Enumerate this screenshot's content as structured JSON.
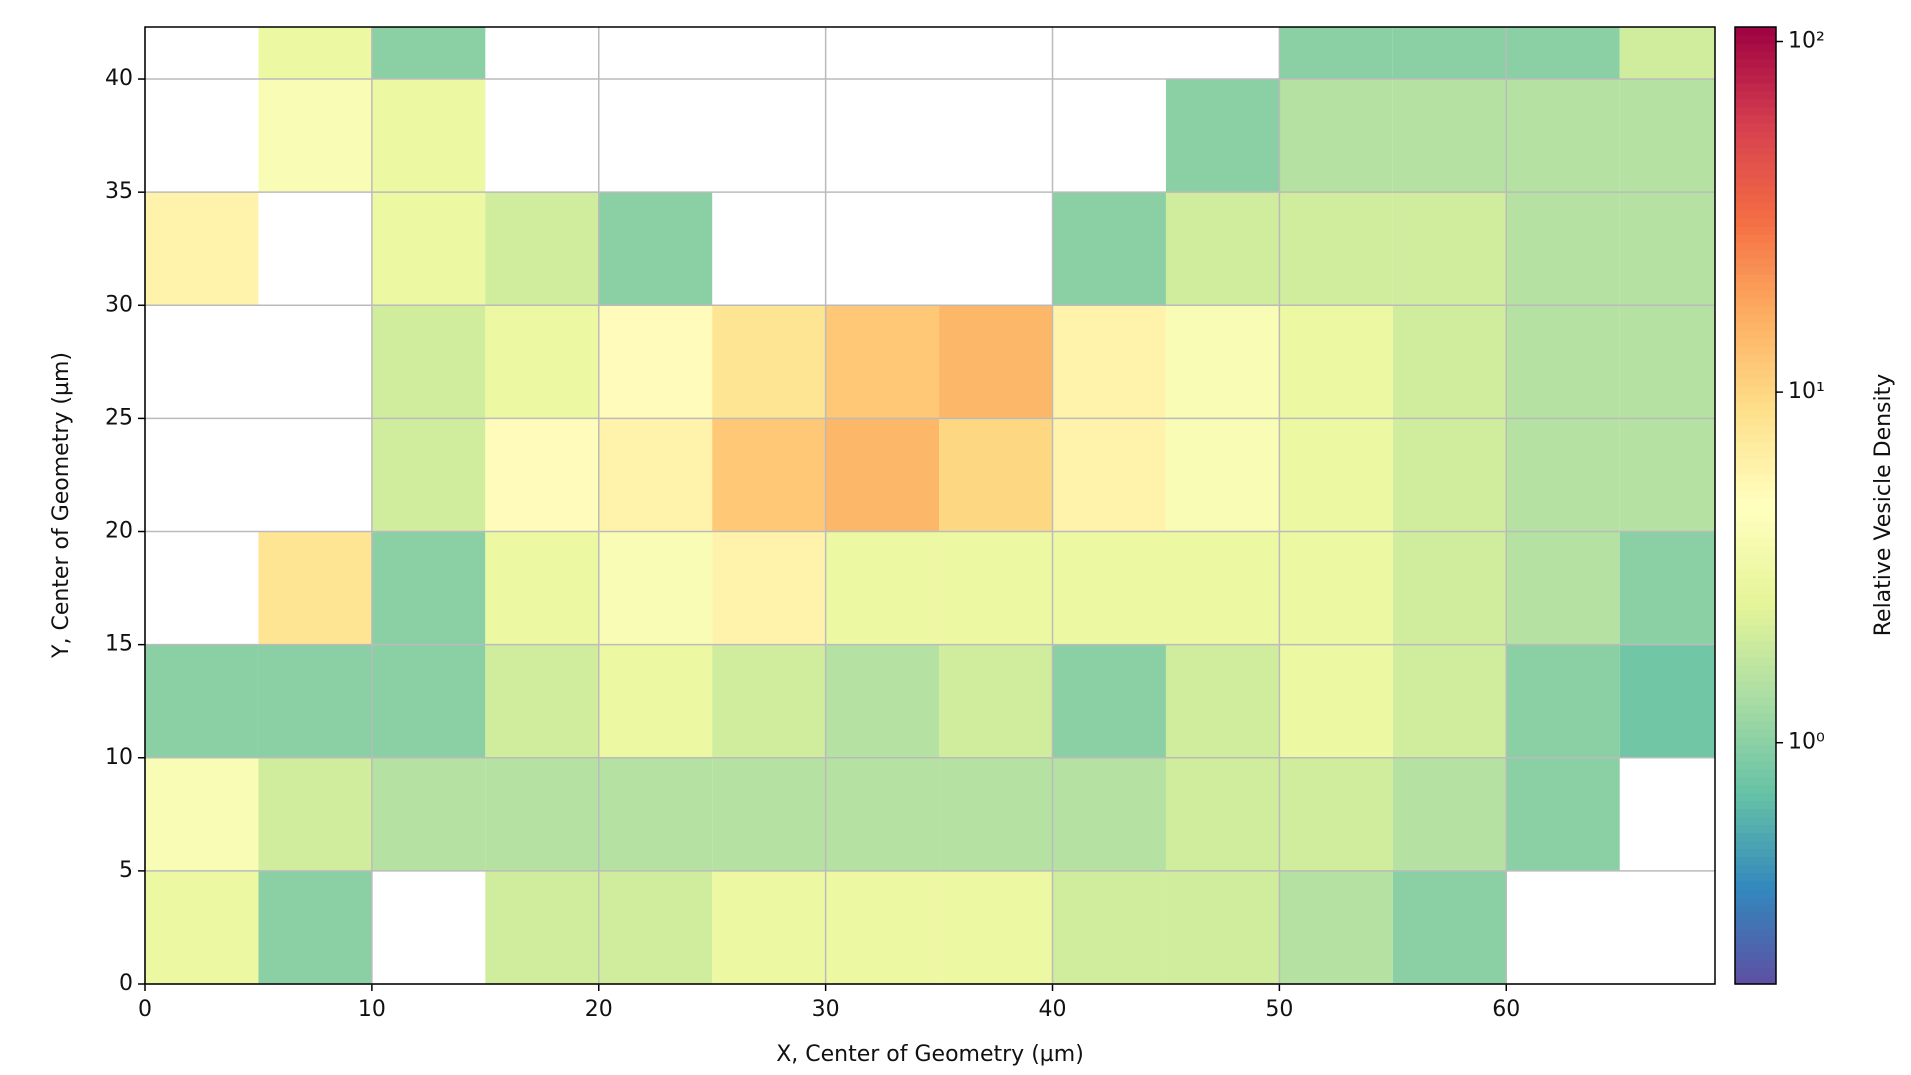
{
  "chart_data": {
    "type": "hist2d",
    "xlabel": "X, Center of Geometry (µm)",
    "ylabel": "Y, Center of Geometry (µm)",
    "colorbar_label": "Relative Vesicle Density",
    "colormap": "Spectral_r",
    "color_scale": "log",
    "clim": [
      0.205,
      110
    ],
    "cticks": [
      {
        "value": 1,
        "label": "10⁰"
      },
      {
        "value": 10,
        "label": "10¹"
      },
      {
        "value": 100,
        "label": "10²"
      }
    ],
    "xlim": [
      0,
      69.2
    ],
    "ylim": [
      0,
      42.3
    ],
    "xticks": [
      0,
      10,
      20,
      30,
      40,
      50,
      60
    ],
    "yticks": [
      0,
      5,
      10,
      15,
      20,
      25,
      30,
      35,
      40
    ],
    "grid": true,
    "xbins": [
      0,
      5,
      10,
      15,
      20,
      25,
      30,
      35,
      40,
      45,
      50,
      55,
      60,
      65,
      70
    ],
    "ybins": [
      0,
      5,
      10,
      15,
      20,
      25,
      30,
      35,
      40,
      45
    ],
    "values": [
      [
        3,
        1,
        null,
        2,
        2,
        3,
        3,
        3,
        2,
        2,
        1.5,
        1,
        null,
        null
      ],
      [
        4,
        2,
        1.5,
        1.5,
        1.5,
        1.5,
        1.5,
        1.5,
        1.5,
        2,
        2,
        1.5,
        1,
        null
      ],
      [
        1,
        1,
        1,
        2,
        3,
        2,
        1.5,
        2,
        1,
        2,
        3,
        2,
        1,
        0.8
      ],
      [
        null,
        8,
        1,
        3,
        4,
        6,
        3,
        3,
        3,
        3,
        3,
        2,
        1.5,
        1
      ],
      [
        null,
        null,
        2,
        5,
        6,
        12,
        15,
        10,
        6,
        4,
        3,
        2,
        1.5,
        1.5
      ],
      [
        null,
        null,
        2,
        3,
        5,
        8,
        12,
        15,
        6,
        4,
        3,
        2,
        1.5,
        1.5
      ],
      [
        6,
        null,
        3,
        2,
        1,
        null,
        null,
        null,
        1,
        2,
        2,
        2,
        1.5,
        1.5
      ],
      [
        null,
        4,
        3,
        null,
        null,
        null,
        null,
        null,
        null,
        1,
        1.5,
        1.5,
        1.5,
        1.5
      ],
      [
        null,
        3,
        1,
        null,
        null,
        null,
        null,
        null,
        null,
        null,
        1,
        1,
        1,
        2
      ]
    ]
  }
}
